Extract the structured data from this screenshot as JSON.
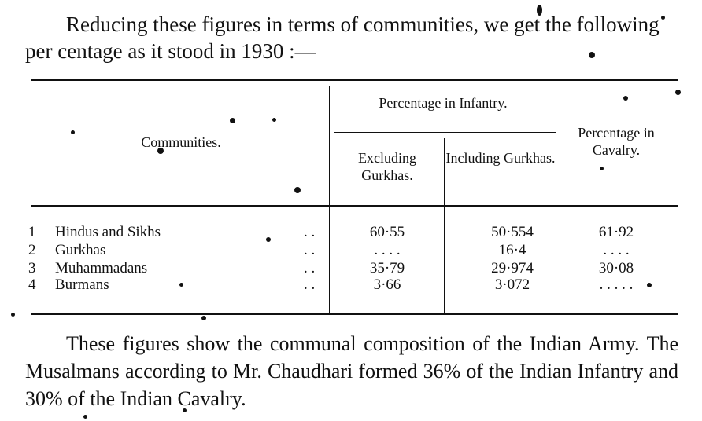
{
  "intro": "Reducing these figures in terms of communities, we get the following per centage as it stood in 1930 :—",
  "table": {
    "headers": {
      "communities": "Communities.",
      "infantry": "Percentage in Infantry.",
      "excluding": "Excluding Gurkhas.",
      "including": "Including Gurkhas.",
      "cavalry": "Percentage in Cavalry."
    },
    "rows": [
      {
        "num": "1",
        "name": "Hindus and Sikhs",
        "dots": ". .",
        "excl": "60·55",
        "incl": "50·554",
        "cav": "61·92"
      },
      {
        "num": "2",
        "name": "Gurkhas",
        "dots": ". .",
        "excl": ". . . .",
        "incl": "16·4",
        "cav": ". . . ."
      },
      {
        "num": "3",
        "name": "Muhammadans",
        "dots": ". .",
        "excl": "35·79",
        "incl": "29·974",
        "cav": "30·08"
      },
      {
        "num": "4",
        "name": "Burmans",
        "dots": ". .",
        "excl": "3·66",
        "incl": "3·072",
        "cav": ". . . . ."
      }
    ]
  },
  "outro": "These figures show the communal composition of the Indian Army. The Musalmans according to Mr. Chaudhari formed 36% of the Indian Infantry and 30% of the Indian Cavalry."
}
